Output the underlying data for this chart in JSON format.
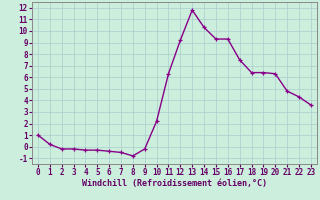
{
  "x": [
    0,
    1,
    2,
    3,
    4,
    5,
    6,
    7,
    8,
    9,
    10,
    11,
    12,
    13,
    14,
    15,
    16,
    17,
    18,
    19,
    20,
    21,
    22,
    23
  ],
  "y": [
    1.0,
    0.2,
    -0.2,
    -0.2,
    -0.3,
    -0.3,
    -0.4,
    -0.5,
    -0.8,
    -0.2,
    2.2,
    6.3,
    9.2,
    11.8,
    10.3,
    9.3,
    9.3,
    7.5,
    6.4,
    6.4,
    6.3,
    4.8,
    4.3,
    3.6
  ],
  "line_color": "#880088",
  "marker": "+",
  "marker_color": "#880088",
  "marker_size": 3.5,
  "line_width": 1.0,
  "background_color": "#cceedd",
  "grid_color": "#aacccc",
  "xlabel": "Windchill (Refroidissement éolien,°C)",
  "xlabel_fontsize": 6.0,
  "tick_fontsize": 5.5,
  "xlim": [
    -0.5,
    23.5
  ],
  "ylim": [
    -1.5,
    12.5
  ],
  "yticks": [
    -1,
    0,
    1,
    2,
    3,
    4,
    5,
    6,
    7,
    8,
    9,
    10,
    11,
    12
  ],
  "xticks": [
    0,
    1,
    2,
    3,
    4,
    5,
    6,
    7,
    8,
    9,
    10,
    11,
    12,
    13,
    14,
    15,
    16,
    17,
    18,
    19,
    20,
    21,
    22,
    23
  ],
  "label_color": "#660066",
  "spine_color": "#888888"
}
